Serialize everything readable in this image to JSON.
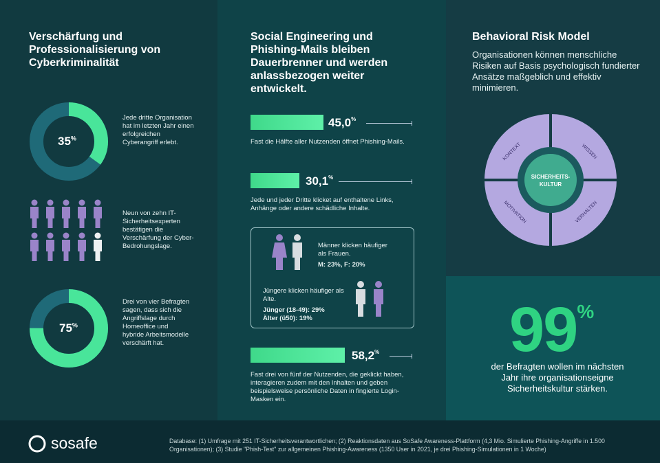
{
  "col1": {
    "title": "Verschärfung und Professionalisierung von Cyberkriminalität",
    "stat1": {
      "value": "35",
      "unit": "%",
      "fraction": 0.35,
      "text": "Jede dritte Organisation hat im letzten Jahr einen erfolgreichen Cyberangriff erlebt."
    },
    "stat2": {
      "count_highlight": 9,
      "count_total": 10,
      "text": "Neun von zehn IT-Sicherheitsexperten bestätigen die Verschärfung der Cyber-Bedrohungslage."
    },
    "stat3": {
      "value": "75",
      "unit": "%",
      "fraction": 0.75,
      "text": "Drei von vier Befragten sagen, dass sich die Angriffslage durch Homeoffice und hybride Arbeitsmodelle verschärft hat."
    }
  },
  "col2": {
    "title": "Social Engineering und Phishing-Mails bleiben Dauerbrenner und werden anlassbezogen weiter entwickelt.",
    "bar1": {
      "value": "45,0",
      "unit": "%",
      "fraction": 0.45,
      "text": "Fast die Hälfte aller Nutzenden öffnet Phishing-Mails."
    },
    "bar2": {
      "value": "30,1",
      "unit": "%",
      "fraction": 0.301,
      "text": "Jede und jeder Dritte klicket auf enthaltene Links, Anhänge oder andere schädliche Inhalte."
    },
    "box": {
      "gender_text": "Männer klicken häufiger als Frauen.",
      "gender_values": "M: 23%, F: 20%",
      "age_text": "Jüngere klicken häufiger als Alte.",
      "age_young": "Jünger (18-49): 29%",
      "age_old": "Älter (ü50): 19%"
    },
    "bar3": {
      "value": "58,2",
      "unit": "%",
      "fraction": 0.582,
      "text": "Fast drei von fünf der Nutzenden, die geklickt haben, interagieren zudem mit den Inhalten und geben beispielsweise persönliche Daten in fingierte Login-Masken ein."
    }
  },
  "col3": {
    "title": "Behavioral Risk Model",
    "subtitle": "Organisationen können menschliche Risiken auf Basis psychologisch fundierter Ansätze maßgeblich und effektiv minimieren.",
    "model": {
      "center_line1": "SICHERHEITS-",
      "center_line2": "KULTUR",
      "q1": "KONTEXT",
      "q2": "WISSEN",
      "q3": "MOTIVATION",
      "q4": "VERHALTEN"
    },
    "big_value": "99",
    "big_unit": "%",
    "big_text": "der Befragten wollen im nächsten Jahr ihre organisationseigne Sicherheitskultur stärken."
  },
  "footer": {
    "logo": "sosafe",
    "source": "Database: (1) Umfrage mit 251 IT-Sicherheitsverantwortlichen; (2) Reaktionsdaten aus SoSafe Awareness-Plattform (4,3 Mio. Simulierte Phishing-Angriffe in 1.500 Organisationen); (3) Studie \"Phish-Test\" zur allgemeinen Phishing-Awareness (1350 User in 2021, je drei Phishing-Simulationen in 1 Woche)"
  },
  "colors": {
    "accent_green": "#3fd98a",
    "purple": "#8f7fc4",
    "purple_light": "#b4a8e0"
  }
}
